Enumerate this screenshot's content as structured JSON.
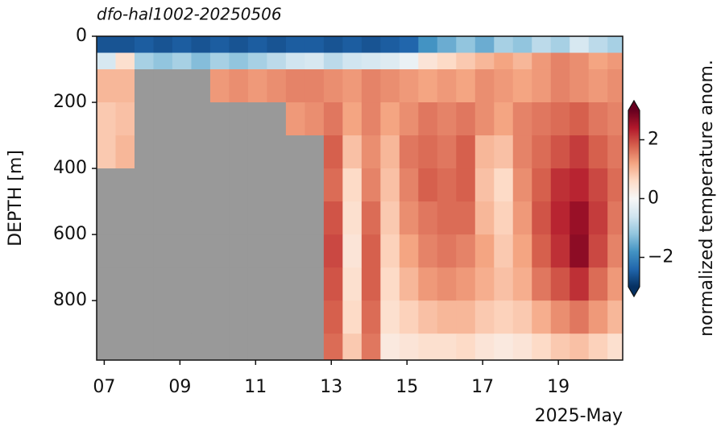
{
  "chart_data": {
    "type": "heatmap",
    "title": "dfo-hal1002-20250506",
    "x_label": "2025-May",
    "y_label": "DEPTH [m]",
    "colorbar_label": "normalized temperature anom.",
    "colormap": "RdBu_r",
    "nan_color": "#999999",
    "clim": [
      -3,
      3
    ],
    "cticks": [
      {
        "value": -2,
        "label": "−2"
      },
      0,
      2
    ],
    "xlim": [
      6.8,
      20.7
    ],
    "ylim": [
      980,
      0
    ],
    "xticks": [
      {
        "value": 7,
        "label": "07"
      },
      {
        "value": 9,
        "label": "09"
      },
      11,
      13,
      15,
      17,
      19
    ],
    "yticks": [
      0,
      200,
      400,
      600,
      800
    ],
    "x_edges": [
      6.8,
      7.3,
      7.8,
      8.3,
      8.8,
      9.3,
      9.8,
      10.3,
      10.8,
      11.3,
      11.8,
      12.3,
      12.8,
      13.3,
      13.8,
      14.3,
      14.8,
      15.3,
      15.8,
      16.3,
      16.8,
      17.3,
      17.8,
      18.3,
      18.8,
      19.3,
      19.8,
      20.3,
      20.7
    ],
    "y_edges": [
      0,
      50,
      100,
      200,
      300,
      400,
      500,
      600,
      700,
      800,
      900,
      980
    ],
    "z": [
      [
        -2.6,
        -2.6,
        -2.5,
        -2.6,
        -2.5,
        -2.6,
        -2.5,
        -2.6,
        -2.5,
        -2.6,
        -2.5,
        -2.5,
        -2.6,
        -2.5,
        -2.6,
        -2.5,
        -2.4,
        -1.8,
        -1.5,
        -1.2,
        -1.5,
        -1.0,
        -1.2,
        -0.8,
        -1.0,
        -0.5,
        -0.8,
        -1.0
      ],
      [
        -0.5,
        0.5,
        -1.0,
        -1.2,
        -1.0,
        -1.3,
        -1.0,
        -1.2,
        -1.0,
        -0.8,
        -0.6,
        -0.5,
        -0.8,
        -0.6,
        -0.5,
        -0.4,
        -0.2,
        0.4,
        0.6,
        0.8,
        1.0,
        1.2,
        1.0,
        1.3,
        1.5,
        1.4,
        1.2,
        1.3
      ],
      [
        1.0,
        1.0,
        null,
        null,
        null,
        null,
        1.3,
        1.4,
        1.3,
        1.4,
        1.5,
        1.5,
        1.4,
        1.3,
        1.5,
        1.4,
        1.3,
        1.2,
        1.3,
        1.2,
        1.4,
        1.3,
        1.2,
        1.3,
        1.5,
        1.4,
        1.3,
        1.4
      ],
      [
        0.8,
        0.9,
        null,
        null,
        null,
        null,
        null,
        null,
        null,
        null,
        1.3,
        1.4,
        1.6,
        1.2,
        1.5,
        1.2,
        1.4,
        1.6,
        1.5,
        1.6,
        1.4,
        1.2,
        1.5,
        1.6,
        1.7,
        1.8,
        1.6,
        1.5
      ],
      [
        0.8,
        1.0,
        null,
        null,
        null,
        null,
        null,
        null,
        null,
        null,
        null,
        null,
        1.8,
        0.9,
        1.4,
        1.0,
        1.6,
        1.7,
        1.6,
        1.8,
        1.0,
        0.9,
        1.5,
        1.7,
        1.9,
        2.1,
        1.8,
        1.6
      ],
      [
        null,
        null,
        null,
        null,
        null,
        null,
        null,
        null,
        null,
        null,
        null,
        null,
        1.7,
        0.6,
        1.5,
        0.9,
        1.5,
        1.8,
        1.7,
        1.8,
        0.9,
        0.6,
        1.4,
        1.8,
        2.2,
        2.3,
        2.0,
        1.7
      ],
      [
        null,
        null,
        null,
        null,
        null,
        null,
        null,
        null,
        null,
        null,
        null,
        null,
        1.9,
        0.5,
        1.7,
        0.8,
        1.4,
        1.6,
        1.7,
        1.7,
        1.0,
        0.7,
        1.3,
        1.9,
        2.3,
        2.6,
        2.1,
        1.6
      ],
      [
        null,
        null,
        null,
        null,
        null,
        null,
        null,
        null,
        null,
        null,
        null,
        null,
        2.0,
        0.4,
        1.8,
        0.7,
        1.2,
        1.5,
        1.6,
        1.5,
        1.2,
        0.8,
        1.2,
        1.8,
        2.2,
        2.7,
        2.0,
        1.5
      ],
      [
        null,
        null,
        null,
        null,
        null,
        null,
        null,
        null,
        null,
        null,
        null,
        null,
        1.9,
        0.5,
        1.8,
        0.6,
        1.0,
        1.3,
        1.4,
        1.3,
        1.1,
        0.9,
        1.1,
        1.6,
        1.9,
        2.2,
        1.7,
        1.3
      ],
      [
        null,
        null,
        null,
        null,
        null,
        null,
        null,
        null,
        null,
        null,
        null,
        null,
        1.8,
        0.6,
        1.7,
        0.5,
        0.7,
        0.9,
        1.0,
        1.0,
        0.8,
        0.7,
        0.8,
        1.1,
        1.4,
        1.6,
        1.3,
        1.0
      ],
      [
        null,
        null,
        null,
        null,
        null,
        null,
        null,
        null,
        null,
        null,
        null,
        null,
        1.7,
        0.8,
        1.6,
        0.3,
        0.4,
        0.5,
        0.5,
        0.6,
        0.4,
        0.3,
        0.4,
        0.6,
        0.8,
        0.9,
        0.7,
        0.5
      ]
    ]
  }
}
